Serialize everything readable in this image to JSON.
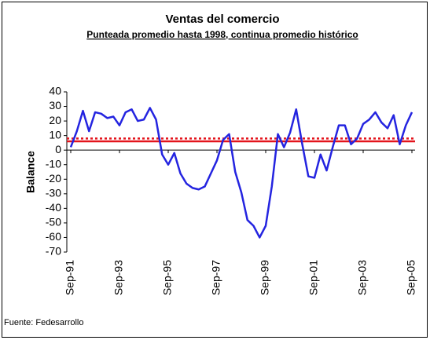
{
  "chart_data": {
    "type": "line",
    "title": "Ventas del comercio",
    "subtitle": "Punteada promedio hasta 1998, continua promedio histórico",
    "y_label": "Balance",
    "source": "Fuente: Fedesarrollo",
    "categories": [
      "Sep-91",
      null,
      null,
      null,
      null,
      null,
      null,
      null,
      "Sep-93",
      null,
      null,
      null,
      null,
      null,
      null,
      null,
      "Sep-95",
      null,
      null,
      null,
      null,
      null,
      null,
      null,
      "Sep-97",
      null,
      null,
      null,
      null,
      null,
      null,
      null,
      "Sep-99",
      null,
      null,
      null,
      null,
      null,
      null,
      null,
      "Sep-01",
      null,
      null,
      null,
      null,
      null,
      null,
      null,
      "Sep-03",
      null,
      null,
      null,
      null,
      null,
      null,
      null,
      "Sep-05"
    ],
    "values": [
      2,
      13,
      27,
      13,
      26,
      25,
      22,
      23,
      17,
      26,
      28,
      20,
      21,
      29,
      21,
      -3,
      -10,
      -2,
      -16,
      -23,
      -26,
      -27,
      -25,
      -16,
      -7,
      7,
      11,
      -15,
      -29,
      -48,
      -52,
      -60,
      -52,
      -25,
      11,
      2,
      12,
      28,
      4,
      -18,
      -19,
      -3,
      -14,
      2,
      17,
      17,
      4,
      8,
      18,
      21,
      26,
      19,
      15,
      24,
      4,
      17,
      26
    ],
    "color": "#2424e0",
    "reference_lines": [
      {
        "value": 8,
        "style": "dotted",
        "color": "#e3141c"
      },
      {
        "value": 6,
        "style": "solid",
        "color": "#e3141c"
      }
    ],
    "ylim": [
      -70,
      40
    ],
    "yticks": [
      -70,
      -60,
      -50,
      -40,
      -30,
      -20,
      -10,
      0,
      10,
      20,
      30,
      40
    ]
  }
}
